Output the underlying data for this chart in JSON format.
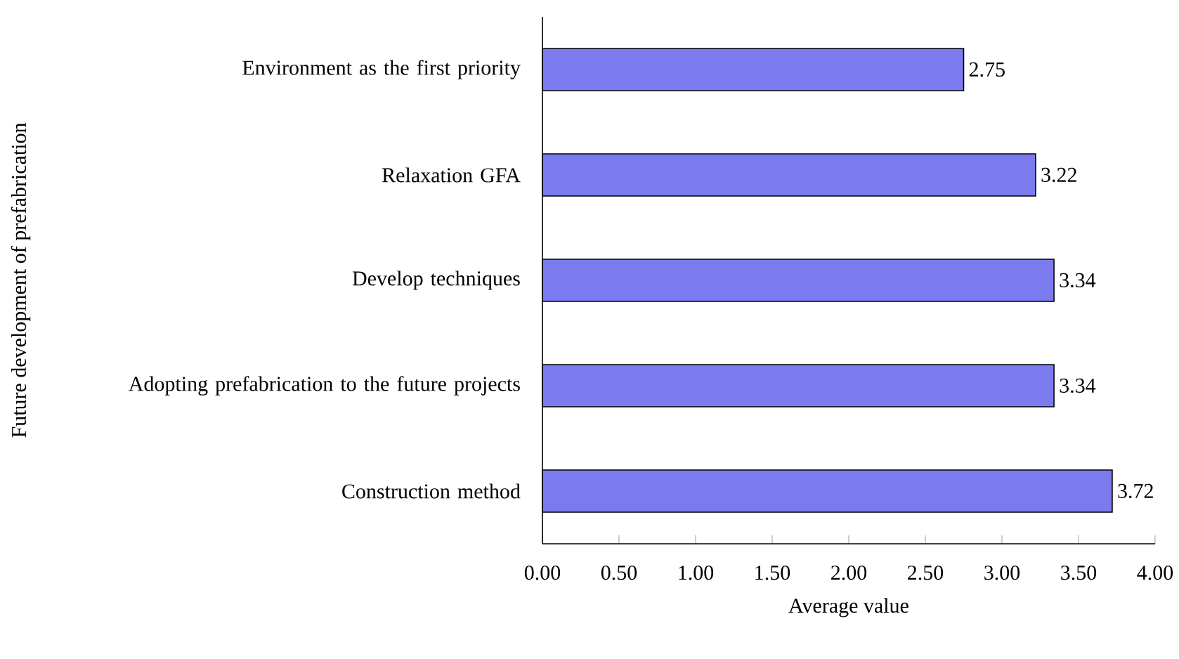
{
  "chart_data": {
    "type": "bar",
    "orientation": "horizontal",
    "xlabel": "Average value",
    "ylabel": "Future development of prefabrication",
    "categories": [
      "Environment as the first priority",
      "Relaxation GFA",
      "Develop techniques",
      "Adopting prefabrication to the future projects",
      "Construction method"
    ],
    "values": [
      2.75,
      3.22,
      3.34,
      3.34,
      3.72
    ],
    "value_labels": [
      "2.75",
      "3.22",
      "3.34",
      "3.34",
      "3.72"
    ],
    "color": "#7b7bef",
    "xlim": [
      0,
      4
    ],
    "xticks": [
      {
        "value": 0,
        "label": "0.00"
      },
      {
        "value": 0.5,
        "label": "0.50"
      },
      {
        "value": 1,
        "label": "1.00"
      },
      {
        "value": 1.5,
        "label": "1.50"
      },
      {
        "value": 2,
        "label": "2.00"
      },
      {
        "value": 2.5,
        "label": "2.50"
      },
      {
        "value": 3,
        "label": "3.00"
      },
      {
        "value": 3.5,
        "label": "3.50"
      },
      {
        "value": 4,
        "label": "4.00"
      }
    ],
    "grid": false
  }
}
